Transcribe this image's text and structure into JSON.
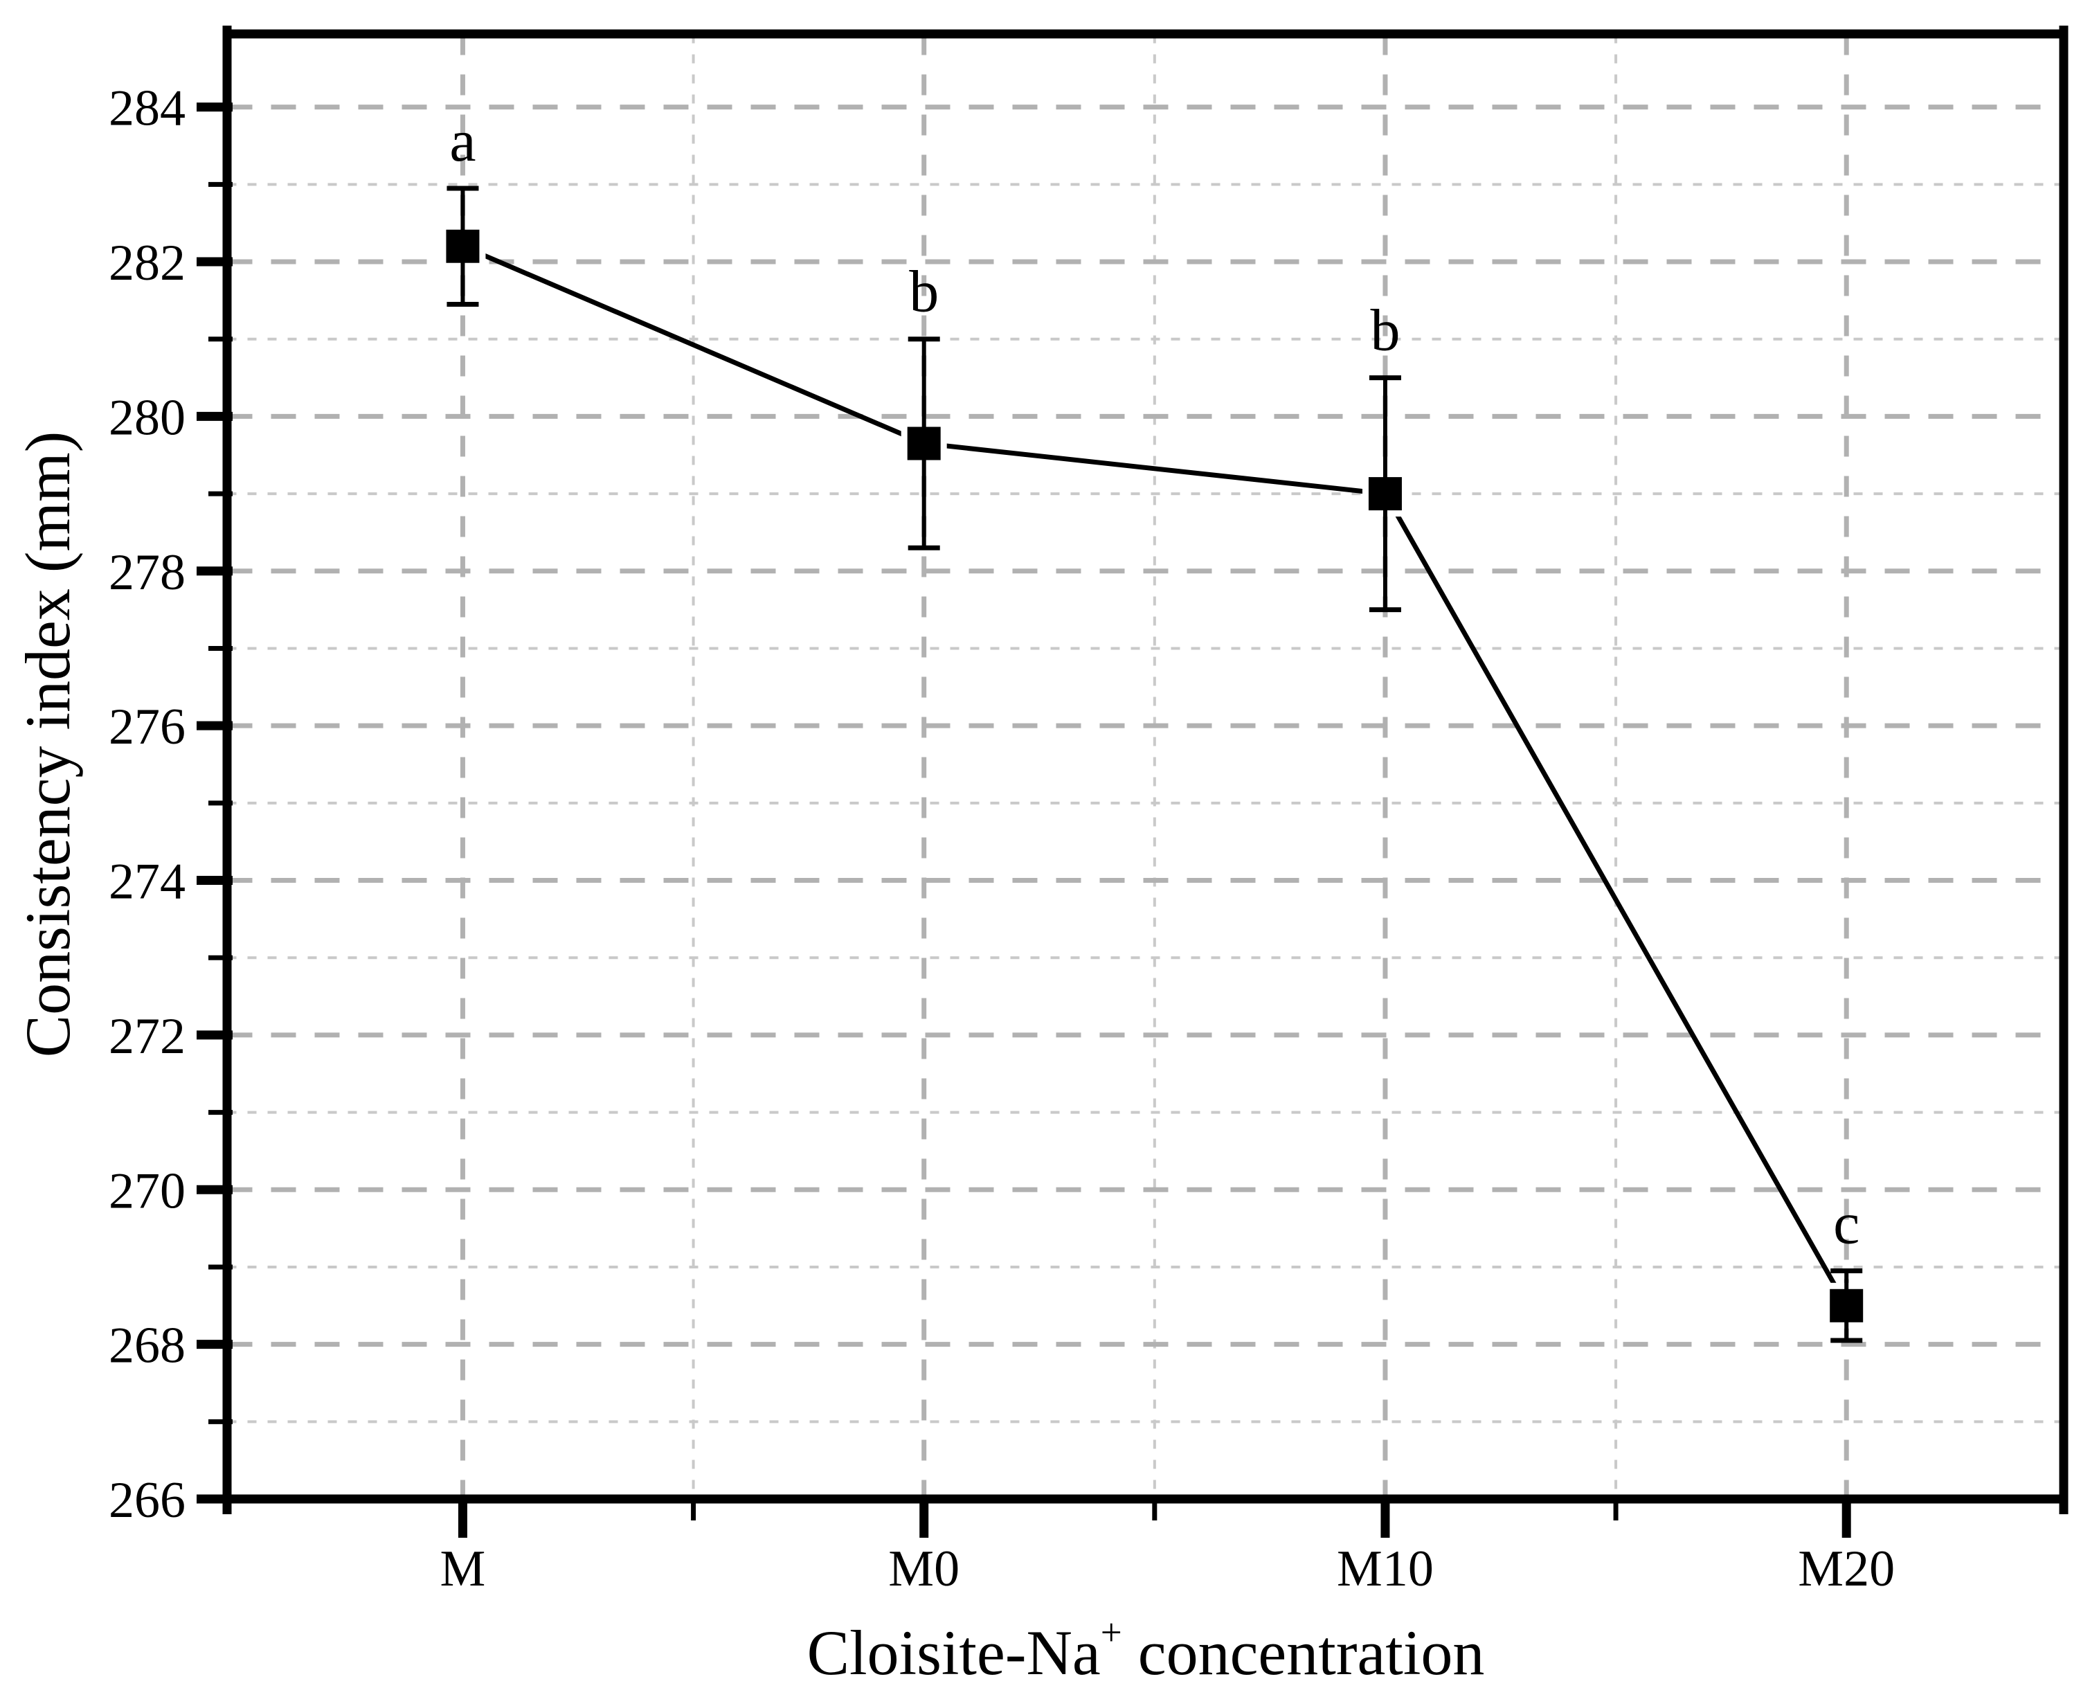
{
  "figure": {
    "background": "#ffffff"
  },
  "chart_data": {
    "type": "line",
    "title": "",
    "xlabel": {
      "pre": "Cloisite-Na",
      "sup": "+",
      "post": " concentration"
    },
    "ylabel": "Consistency index (mm)",
    "categories": [
      "M",
      "M0",
      "M10",
      "M20"
    ],
    "series": [
      {
        "name": "Consistency index",
        "values": [
          282.2,
          279.65,
          279.0,
          268.5
        ],
        "errors_plus": [
          0.75,
          1.35,
          1.5,
          0.45
        ],
        "errors_minus": [
          0.75,
          1.35,
          1.5,
          0.45
        ],
        "point_labels": [
          "a",
          "b",
          "b",
          "c"
        ]
      }
    ],
    "ylim": [
      266,
      285
    ],
    "yticks_major": [
      266,
      268,
      270,
      272,
      274,
      276,
      278,
      280,
      282,
      284
    ],
    "yticks_minor": [
      267,
      269,
      271,
      273,
      275,
      277,
      279,
      281,
      283
    ],
    "grid": "both-dashed",
    "legend": "none",
    "marker": "filled-square",
    "colors": {
      "series": "#000000",
      "grid_major": "#b1b1b1",
      "grid_minor": "#c9c9c9",
      "axis": "#000000",
      "text": "#000000",
      "marker_halo": "#ffffff"
    }
  }
}
